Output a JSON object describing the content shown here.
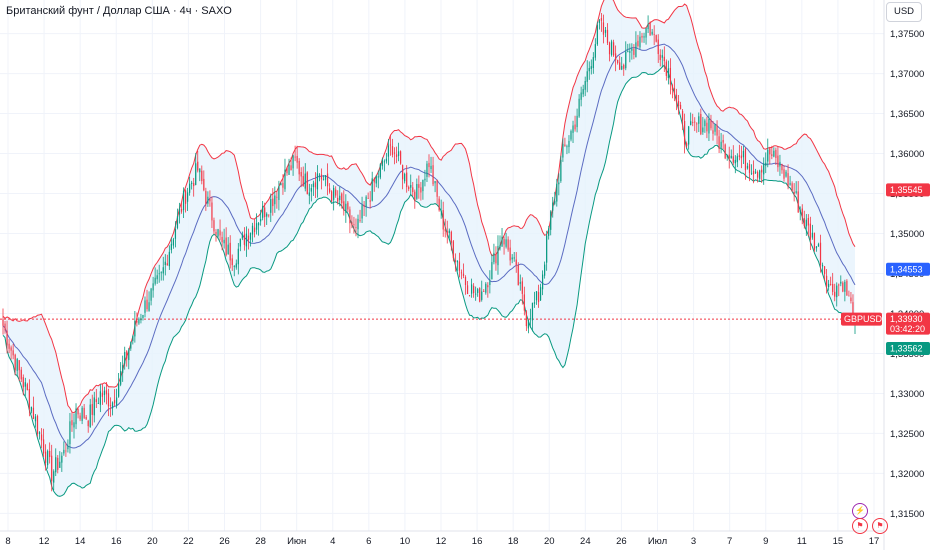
{
  "title": "Британский фунт / Доллар США · 4ч · SAXO",
  "currency": "USD",
  "colors": {
    "up": "#089981",
    "down": "#f23645",
    "basis": "#5b6cc2",
    "upper": "#f23645",
    "lower": "#089981",
    "band_fill": "#e6f3fc",
    "price_line": "#f23645"
  },
  "chart_data": {
    "type": "candlestick",
    "y_axis_ticks": [
      "1,37500",
      "1,37000",
      "1,36500",
      "1,36000",
      "1,35500",
      "1,35000",
      "1,34500",
      "1,34000",
      "1,33500",
      "1,33000",
      "1,32500",
      "1,32000",
      "1,31500"
    ],
    "x_axis_ticks": [
      "8",
      "12",
      "14",
      "16",
      "20",
      "22",
      "26",
      "28",
      "Июн",
      "4",
      "6",
      "10",
      "12",
      "16",
      "18",
      "20",
      "24",
      "26",
      "Июл",
      "3",
      "7",
      "9",
      "11",
      "15",
      "17"
    ],
    "ylim": [
      1.3128,
      1.3792
    ],
    "labels": {
      "upper_band": {
        "value": "1,35545",
        "price": 1.35545
      },
      "basis": {
        "value": "1,34553",
        "price": 1.34553
      },
      "last_price": {
        "symbol": "GBPUSD",
        "value": "1,33930",
        "countdown": "03:42:20",
        "price": 1.3393
      },
      "lower_band": {
        "value": "1,33562",
        "price": 1.33562
      }
    },
    "close_path": [
      [
        0,
        1.3385
      ],
      [
        6,
        1.334
      ],
      [
        12,
        1.33
      ],
      [
        18,
        1.325
      ],
      [
        24,
        1.32
      ],
      [
        30,
        1.3225
      ],
      [
        36,
        1.328
      ],
      [
        42,
        1.327
      ],
      [
        48,
        1.33
      ],
      [
        54,
        1.329
      ],
      [
        60,
        1.334
      ],
      [
        66,
        1.339
      ],
      [
        72,
        1.342
      ],
      [
        78,
        1.3445
      ],
      [
        84,
        1.35
      ],
      [
        90,
        1.355
      ],
      [
        96,
        1.358
      ],
      [
        102,
        1.353
      ],
      [
        108,
        1.3485
      ],
      [
        114,
        1.347
      ],
      [
        120,
        1.35
      ],
      [
        126,
        1.352
      ],
      [
        132,
        1.354
      ],
      [
        138,
        1.357
      ],
      [
        144,
        1.359
      ],
      [
        150,
        1.356
      ],
      [
        156,
        1.3575
      ],
      [
        162,
        1.355
      ],
      [
        168,
        1.353
      ],
      [
        174,
        1.35
      ],
      [
        180,
        1.3545
      ],
      [
        186,
        1.358
      ],
      [
        192,
        1.361
      ],
      [
        198,
        1.357
      ],
      [
        204,
        1.355
      ],
      [
        210,
        1.359
      ],
      [
        216,
        1.352
      ],
      [
        222,
        1.348
      ],
      [
        228,
        1.344
      ],
      [
        234,
        1.342
      ],
      [
        240,
        1.345
      ],
      [
        246,
        1.35
      ],
      [
        252,
        1.346
      ],
      [
        258,
        1.3395
      ],
      [
        264,
        1.342
      ],
      [
        270,
        1.352
      ],
      [
        276,
        1.36
      ],
      [
        282,
        1.364
      ],
      [
        288,
        1.37
      ],
      [
        294,
        1.376
      ],
      [
        300,
        1.373
      ],
      [
        306,
        1.371
      ],
      [
        312,
        1.374
      ],
      [
        318,
        1.376
      ],
      [
        324,
        1.373
      ],
      [
        330,
        1.369
      ],
      [
        336,
        1.362
      ],
      [
        342,
        1.3635
      ],
      [
        348,
        1.364
      ],
      [
        354,
        1.361
      ],
      [
        360,
        1.36
      ],
      [
        366,
        1.359
      ],
      [
        372,
        1.358
      ],
      [
        378,
        1.36
      ],
      [
        384,
        1.358
      ],
      [
        390,
        1.355
      ],
      [
        396,
        1.351
      ],
      [
        402,
        1.348
      ],
      [
        408,
        1.343
      ],
      [
        414,
        1.344
      ],
      [
        420,
        1.3393
      ]
    ]
  }
}
